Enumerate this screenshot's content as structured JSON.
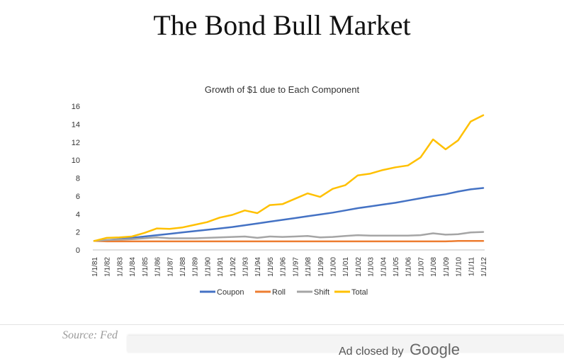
{
  "page": {
    "title": "The Bond Bull Market",
    "source": "Source: Fed",
    "ad_text": "Ad closed by",
    "ad_brand": "Google"
  },
  "colors": {
    "Coupon": "#4472c4",
    "Roll": "#ed7d31",
    "Shift": "#a5a5a5",
    "Total": "#ffc000"
  },
  "chart_data": {
    "type": "line",
    "title": "Growth of $1 due to Each Component",
    "xlabel": "",
    "ylabel": "",
    "ylim": [
      0,
      16
    ],
    "yticks": [
      0,
      2,
      4,
      6,
      8,
      10,
      12,
      14,
      16
    ],
    "grid": false,
    "legend": "bottom",
    "categories": [
      "1/1/81",
      "1/1/82",
      "1/1/83",
      "1/1/84",
      "1/1/85",
      "1/1/86",
      "1/1/87",
      "1/1/88",
      "1/1/89",
      "1/1/90",
      "1/1/91",
      "1/1/92",
      "1/1/93",
      "1/1/94",
      "1/1/95",
      "1/1/96",
      "1/1/97",
      "1/1/98",
      "1/1/99",
      "1/1/00",
      "1/1/01",
      "1/1/02",
      "1/1/03",
      "1/1/04",
      "1/1/05",
      "1/1/06",
      "1/1/07",
      "1/1/08",
      "1/1/09",
      "1/1/10",
      "1/1/11",
      "1/1/12"
    ],
    "series": [
      {
        "name": "Coupon",
        "values": [
          1.0,
          1.1,
          1.2,
          1.35,
          1.5,
          1.65,
          1.8,
          1.95,
          2.1,
          2.25,
          2.4,
          2.55,
          2.75,
          2.95,
          3.15,
          3.35,
          3.55,
          3.75,
          3.95,
          4.15,
          4.4,
          4.65,
          4.85,
          5.05,
          5.25,
          5.5,
          5.75,
          6.0,
          6.2,
          6.5,
          6.75,
          6.9
        ]
      },
      {
        "name": "Roll",
        "values": [
          1.0,
          0.95,
          0.95,
          0.95,
          0.95,
          0.95,
          0.95,
          0.95,
          0.95,
          0.95,
          0.95,
          0.95,
          0.95,
          0.95,
          0.95,
          0.95,
          0.95,
          0.95,
          0.95,
          0.95,
          0.95,
          0.95,
          0.95,
          0.95,
          0.95,
          0.95,
          0.95,
          0.95,
          0.95,
          1.0,
          1.0,
          1.0
        ]
      },
      {
        "name": "Shift",
        "values": [
          1.0,
          1.1,
          1.15,
          1.2,
          1.3,
          1.4,
          1.3,
          1.3,
          1.3,
          1.35,
          1.4,
          1.45,
          1.5,
          1.35,
          1.5,
          1.45,
          1.5,
          1.55,
          1.4,
          1.45,
          1.55,
          1.65,
          1.6,
          1.6,
          1.6,
          1.6,
          1.65,
          1.85,
          1.7,
          1.75,
          1.95,
          2.0
        ]
      },
      {
        "name": "Total",
        "values": [
          1.0,
          1.35,
          1.4,
          1.5,
          1.9,
          2.4,
          2.35,
          2.5,
          2.8,
          3.1,
          3.6,
          3.9,
          4.4,
          4.1,
          5.0,
          5.1,
          5.7,
          6.3,
          5.9,
          6.8,
          7.2,
          8.3,
          8.5,
          8.9,
          9.2,
          9.4,
          10.3,
          12.3,
          11.2,
          12.2,
          14.3,
          15.0
        ]
      }
    ]
  }
}
